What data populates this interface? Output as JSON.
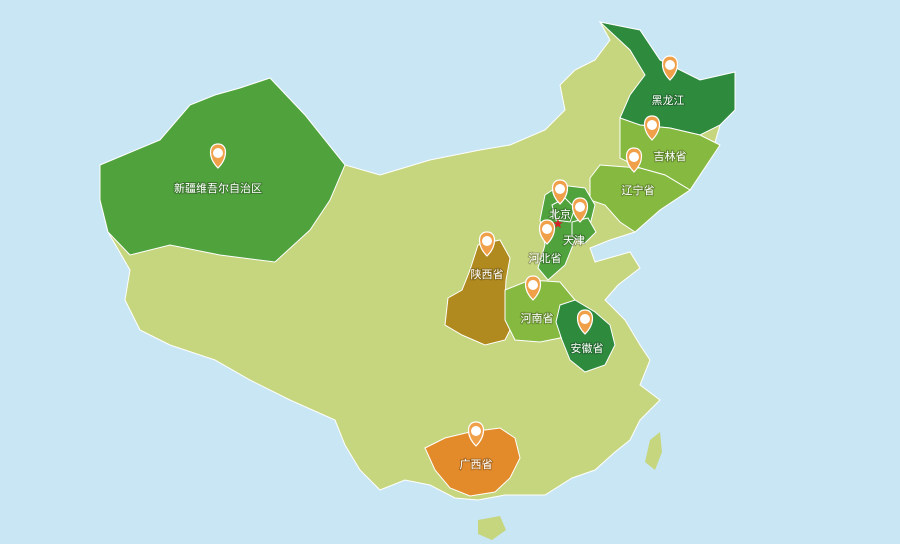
{
  "map": {
    "colors": {
      "sea": "#c9e6f5",
      "land": "#c6d67e",
      "dark_green": "#2e8b3e",
      "mid_green": "#4fa23c",
      "light_green": "#86b93f",
      "olive": "#b08a1e",
      "orange": "#e38b2a",
      "pin": "#f0a048",
      "capital_star": "#d2232a"
    },
    "highlighted_regions": [
      {
        "id": "xinjiang",
        "label": "新疆维吾尔自治区",
        "color_key": "mid_green",
        "icon": "map-pin-icon"
      },
      {
        "id": "heilongjiang",
        "label": "黑龙江",
        "color_key": "dark_green",
        "icon": "map-pin-icon"
      },
      {
        "id": "jilin",
        "label": "吉林省",
        "color_key": "light_green",
        "icon": "map-pin-icon"
      },
      {
        "id": "liaoning",
        "label": "辽宁省",
        "color_key": "light_green",
        "icon": "map-pin-icon"
      },
      {
        "id": "beijing",
        "label": "北京",
        "color_key": "mid_green",
        "icon": "map-pin-icon"
      },
      {
        "id": "tianjin",
        "label": "天津",
        "color_key": "mid_green",
        "icon": "map-pin-icon"
      },
      {
        "id": "hebei",
        "label": "河北省",
        "color_key": "mid_green",
        "icon": "map-pin-icon"
      },
      {
        "id": "shaanxi",
        "label": "陕西省",
        "color_key": "olive",
        "icon": "map-pin-icon"
      },
      {
        "id": "henan",
        "label": "河南省",
        "color_key": "light_green",
        "icon": "map-pin-icon"
      },
      {
        "id": "anhui",
        "label": "安徽省",
        "color_key": "dark_green",
        "icon": "map-pin-icon"
      },
      {
        "id": "guangxi",
        "label": "广西省",
        "color_key": "orange",
        "icon": "map-pin-icon"
      }
    ],
    "capital_marker": {
      "icon": "star-icon",
      "city": "北京"
    }
  }
}
